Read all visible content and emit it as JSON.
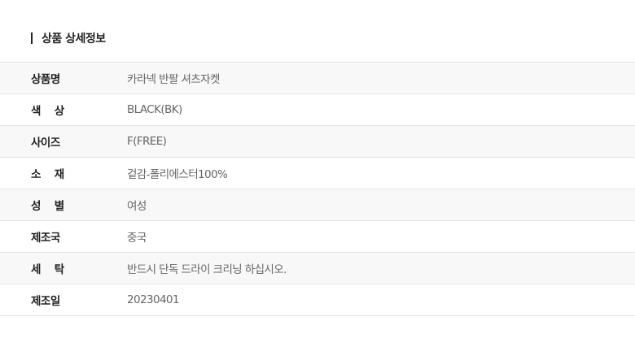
{
  "section_title": "상품 상세정보",
  "rows": [
    {
      "label": "상품명",
      "value": "카라넥 반팔 셔츠자켓"
    },
    {
      "label": "색    상",
      "value": "BLACK(BK)"
    },
    {
      "label": "사이즈",
      "value": "F(FREE)"
    },
    {
      "label": "소    재",
      "value": "겉감-폴리에스터100%"
    },
    {
      "label": "성    별",
      "value": "여성"
    },
    {
      "label": "제조국",
      "value": "중국"
    },
    {
      "label": "세    탁",
      "value": "반드시 단독 드라이 크리닝 하십시오."
    },
    {
      "label": "제조일",
      "value": "20230401"
    }
  ]
}
